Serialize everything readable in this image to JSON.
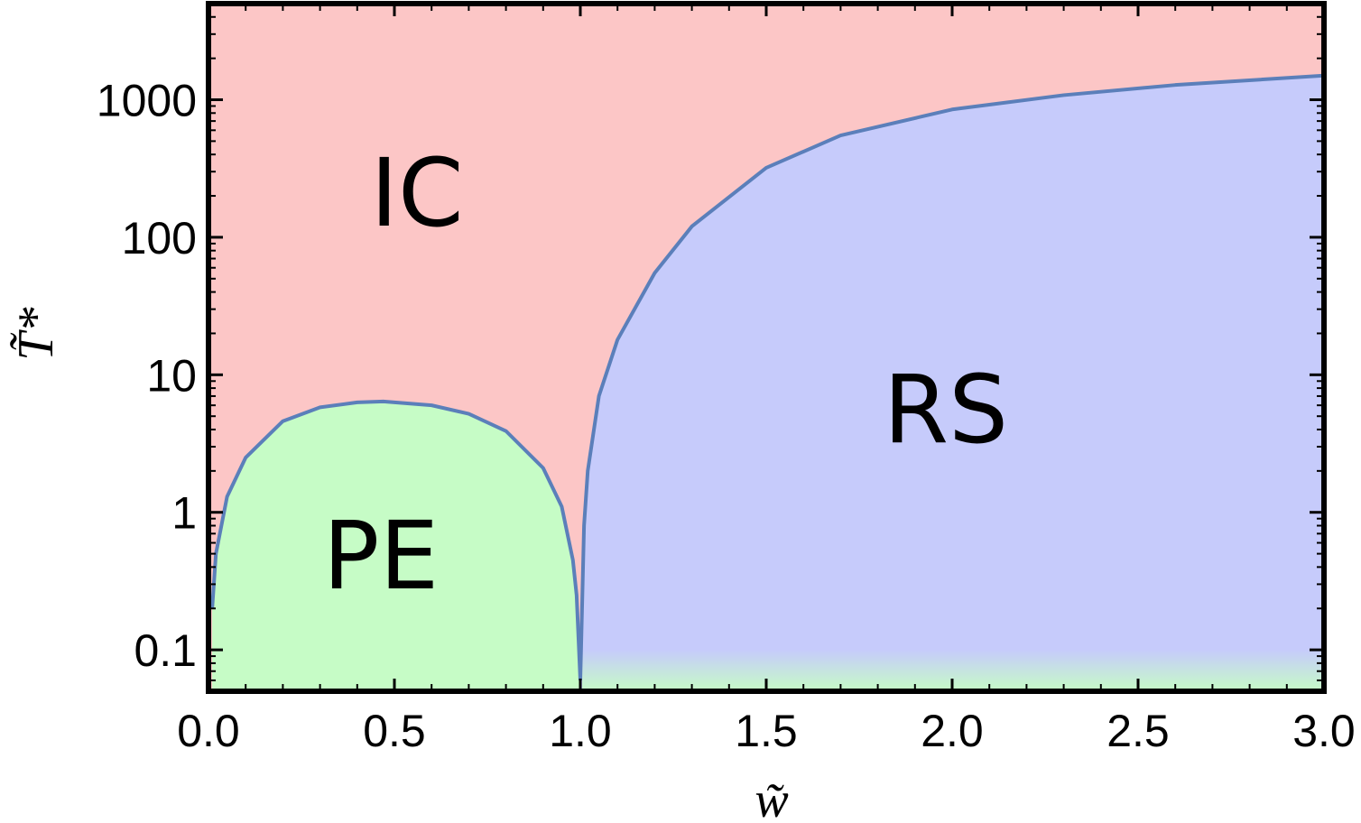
{
  "chart_data": {
    "type": "area",
    "title": "",
    "xlabel": "w̃",
    "ylabel": "T̃*",
    "xlim": [
      0,
      3
    ],
    "ylim": [
      0.05,
      5000
    ],
    "y_scale": "log",
    "grid": false,
    "xticks": [
      "0.0",
      "0.5",
      "1.0",
      "1.5",
      "2.0",
      "2.5",
      "3.0"
    ],
    "yticks": [
      "0.1",
      "1",
      "10",
      "100",
      "1000"
    ],
    "regions": [
      {
        "label": "IC",
        "color": "#fcc6c6"
      },
      {
        "label": "PE",
        "color": "#c6fcc6"
      },
      {
        "label": "RS",
        "color": "#c6cbfb"
      }
    ],
    "boundary_color": "#5b7fba",
    "series": [
      {
        "x": [
          0.01,
          0.02,
          0.05,
          0.1,
          0.2,
          0.3,
          0.4,
          0.47,
          0.6,
          0.7,
          0.8,
          0.9,
          0.95,
          0.98,
          0.99,
          1.0
        ],
        "y": [
          0.2,
          0.5,
          1.3,
          2.5,
          4.6,
          5.8,
          6.3,
          6.4,
          6.0,
          5.2,
          3.9,
          2.1,
          1.1,
          0.45,
          0.25,
          0.06
        ]
      },
      {
        "x": [
          1.0,
          1.01,
          1.02,
          1.05,
          1.1,
          1.2,
          1.3,
          1.5,
          1.7,
          2.0,
          2.3,
          2.6,
          3.0
        ],
        "y": [
          0.06,
          0.8,
          2.0,
          7.0,
          18.0,
          55.0,
          120.0,
          320.0,
          550.0,
          850.0,
          1080.0,
          1280.0,
          1500.0
        ]
      }
    ]
  }
}
